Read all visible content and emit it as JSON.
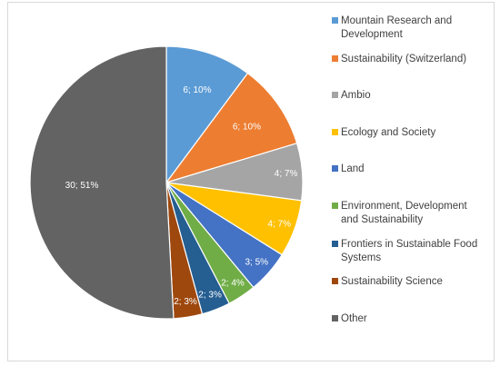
{
  "chart_data": {
    "type": "pie",
    "title": "",
    "legend_position": "right",
    "slices": [
      {
        "name": "Mountain Research and Development",
        "value": 6,
        "percent": 10,
        "label": "6; 10%",
        "color": "#5B9BD5"
      },
      {
        "name": "Sustainability (Switzerland)",
        "value": 6,
        "percent": 10,
        "label": "6; 10%",
        "color": "#ED7D31"
      },
      {
        "name": "Ambio",
        "value": 4,
        "percent": 7,
        "label": "4; 7%",
        "color": "#A5A5A5"
      },
      {
        "name": "Ecology and Society",
        "value": 4,
        "percent": 7,
        "label": "4; 7%",
        "color": "#FFC000"
      },
      {
        "name": "Land",
        "value": 3,
        "percent": 5,
        "label": "3; 5%",
        "color": "#4472C4"
      },
      {
        "name": "Environment, Development and Sustainability",
        "value": 2,
        "percent": 4,
        "label": "2; 4%",
        "color": "#70AD47"
      },
      {
        "name": "Frontiers in Sustainable Food Systems",
        "value": 2,
        "percent": 3,
        "label": "2; 3%",
        "color": "#255E91"
      },
      {
        "name": "Sustainability Science",
        "value": 2,
        "percent": 3,
        "label": "2; 3%",
        "color": "#9E480E"
      },
      {
        "name": "Other",
        "value": 30,
        "percent": 51,
        "label": "30; 51%",
        "color": "#636363"
      }
    ]
  }
}
